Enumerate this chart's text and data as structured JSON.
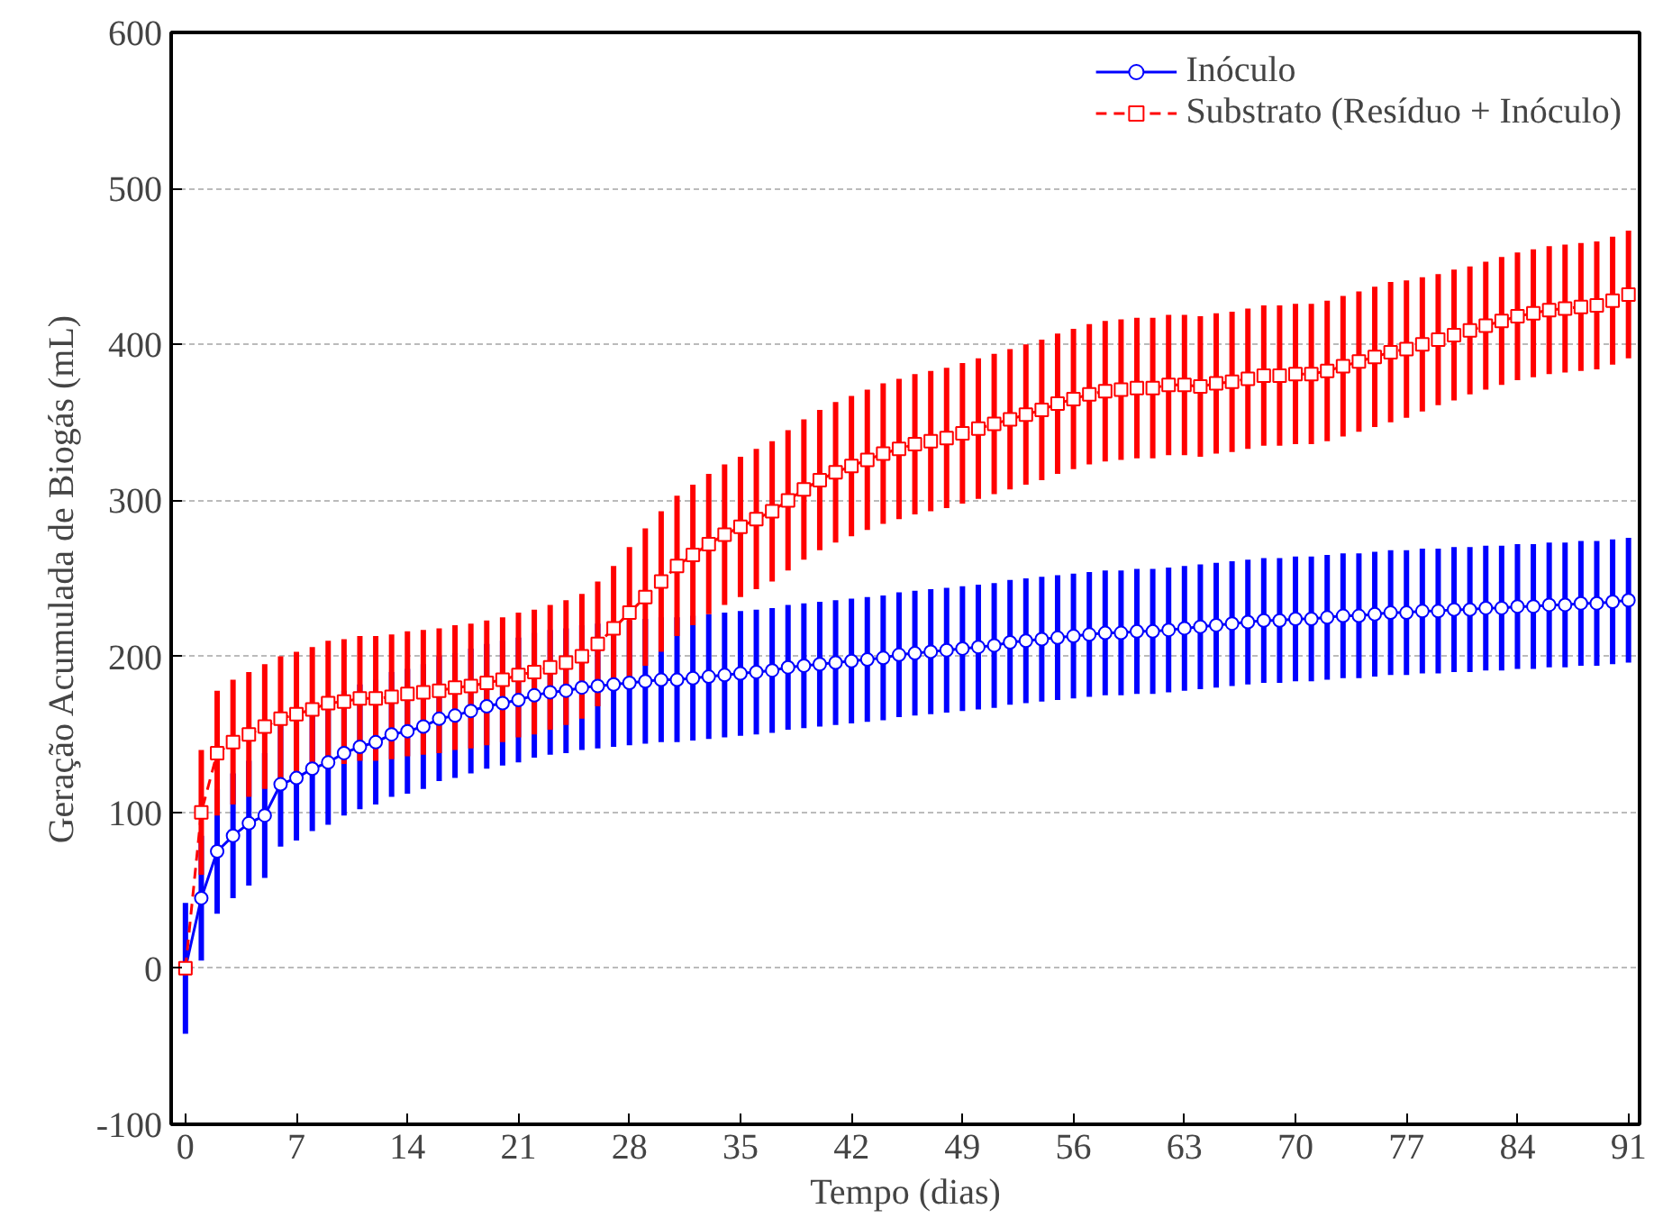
{
  "chart_data": {
    "type": "line",
    "xlabel": "Tempo (dias)",
    "ylabel": "Geração Acumulada de Biogás (mL)",
    "x": [
      0,
      1,
      2,
      3,
      4,
      5,
      6,
      7,
      8,
      9,
      10,
      11,
      12,
      13,
      14,
      15,
      16,
      17,
      18,
      19,
      20,
      21,
      22,
      23,
      24,
      25,
      26,
      27,
      28,
      29,
      30,
      31,
      32,
      33,
      34,
      35,
      36,
      37,
      38,
      39,
      40,
      41,
      42,
      43,
      44,
      45,
      46,
      47,
      48,
      49,
      50,
      51,
      52,
      53,
      54,
      55,
      56,
      57,
      58,
      59,
      60,
      61,
      62,
      63,
      64,
      65,
      66,
      67,
      68,
      69,
      70,
      71,
      72,
      73,
      74,
      75,
      76,
      77,
      78,
      79,
      80,
      81,
      82,
      83,
      84,
      85,
      86,
      87,
      88,
      89,
      90,
      91
    ],
    "series": [
      {
        "name": "Inóculo",
        "color": "#0000ff",
        "marker": "circle",
        "line_style": "solid",
        "values": [
          0,
          45,
          75,
          85,
          93,
          98,
          118,
          122,
          128,
          132,
          138,
          142,
          145,
          150,
          152,
          155,
          160,
          162,
          165,
          168,
          170,
          172,
          175,
          177,
          178,
          180,
          181,
          182,
          183,
          184,
          185,
          185,
          186,
          187,
          188,
          189,
          190,
          191,
          193,
          194,
          195,
          196,
          197,
          198,
          199,
          201,
          202,
          203,
          204,
          205,
          206,
          207,
          209,
          210,
          211,
          212,
          213,
          214,
          215,
          215,
          216,
          216,
          217,
          218,
          219,
          220,
          221,
          222,
          223,
          223,
          224,
          224,
          225,
          226,
          226,
          227,
          228,
          228,
          229,
          229,
          230,
          230,
          231,
          231,
          232,
          232,
          233,
          233,
          234,
          234,
          235,
          236
        ],
        "errors": [
          42,
          40,
          40,
          40,
          40,
          40,
          40,
          40,
          40,
          40,
          40,
          40,
          40,
          40,
          40,
          40,
          40,
          40,
          40,
          40,
          40,
          40,
          40,
          40,
          40,
          40,
          40,
          40,
          40,
          40,
          40,
          40,
          40,
          40,
          40,
          40,
          40,
          40,
          40,
          40,
          40,
          40,
          40,
          40,
          40,
          40,
          40,
          40,
          40,
          40,
          40,
          40,
          40,
          40,
          40,
          40,
          40,
          40,
          40,
          40,
          40,
          40,
          40,
          40,
          40,
          40,
          40,
          40,
          40,
          40,
          40,
          40,
          40,
          40,
          40,
          40,
          40,
          40,
          40,
          40,
          40,
          40,
          40,
          40,
          40,
          40,
          40,
          40,
          40,
          40,
          40,
          40
        ]
      },
      {
        "name": "Substrato (Resíduo + Inóculo)",
        "color": "#ff0000",
        "marker": "square",
        "line_style": "dashed",
        "values": [
          0,
          100,
          138,
          145,
          150,
          155,
          160,
          163,
          166,
          170,
          171,
          173,
          173,
          174,
          176,
          177,
          178,
          180,
          181,
          183,
          185,
          188,
          190,
          193,
          196,
          200,
          208,
          218,
          228,
          238,
          248,
          258,
          265,
          272,
          278,
          283,
          288,
          293,
          300,
          307,
          313,
          318,
          322,
          326,
          330,
          333,
          336,
          338,
          340,
          343,
          346,
          349,
          352,
          355,
          358,
          362,
          365,
          368,
          370,
          371,
          372,
          372,
          374,
          374,
          373,
          375,
          376,
          378,
          380,
          380,
          381,
          381,
          383,
          386,
          389,
          392,
          395,
          397,
          400,
          403,
          406,
          409,
          412,
          415,
          418,
          420,
          422,
          423,
          424,
          425,
          428,
          432
        ],
        "errors": [
          null,
          40,
          40,
          40,
          40,
          40,
          40,
          40,
          40,
          40,
          40,
          40,
          40,
          40,
          40,
          40,
          40,
          40,
          40,
          40,
          40,
          40,
          40,
          40,
          40,
          40,
          40,
          40,
          42,
          44,
          45,
          45,
          45,
          45,
          45,
          45,
          45,
          45,
          45,
          45,
          45,
          45,
          45,
          45,
          45,
          45,
          45,
          45,
          45,
          45,
          45,
          45,
          45,
          45,
          45,
          45,
          45,
          45,
          45,
          45,
          45,
          45,
          45,
          45,
          45,
          45,
          45,
          45,
          45,
          45,
          45,
          45,
          45,
          45,
          45,
          45,
          45,
          44,
          43,
          42,
          42,
          41,
          41,
          41,
          41,
          41,
          41,
          41,
          41,
          41,
          41,
          41
        ]
      }
    ],
    "xlim": [
      -0.9,
      91.7
    ],
    "ylim": [
      -100,
      600
    ],
    "xticks": [
      0,
      7,
      14,
      21,
      28,
      35,
      42,
      49,
      56,
      63,
      70,
      77,
      84,
      91
    ],
    "yticks": [
      -100,
      0,
      100,
      200,
      300,
      400,
      500,
      600
    ],
    "grid": "y",
    "legend": "top right"
  }
}
